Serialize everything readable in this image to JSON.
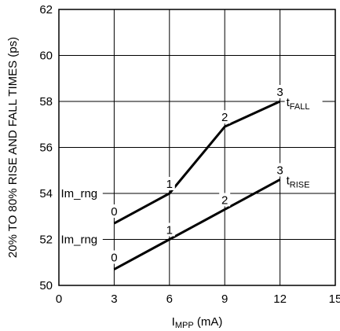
{
  "chart_data": {
    "type": "line",
    "xlabel": {
      "main": "I",
      "sub": "MPP",
      "unit": " (mA)"
    },
    "ylabel": "20% TO 80% RISE AND FALL TIMES (ps)",
    "xlim": [
      0,
      15
    ],
    "ylim": [
      50,
      62
    ],
    "xticks": [
      0,
      3,
      6,
      9,
      12,
      15
    ],
    "yticks": [
      50,
      52,
      54,
      56,
      58,
      60,
      62
    ],
    "grid": true,
    "series": [
      {
        "name": {
          "main": "t",
          "sub": "FALL"
        },
        "x": [
          3,
          6,
          9,
          12
        ],
        "y": [
          52.7,
          54.0,
          56.9,
          58.0
        ],
        "point_labels": [
          "0",
          "1",
          "2",
          "3"
        ]
      },
      {
        "name": {
          "main": "t",
          "sub": "RISE"
        },
        "x": [
          3,
          6,
          9,
          12
        ],
        "y": [
          50.7,
          52.0,
          53.3,
          54.6
        ],
        "point_labels": [
          "0",
          "1",
          "2",
          "3"
        ]
      }
    ],
    "annotations": [
      "Im_rng",
      "Im_rng"
    ]
  }
}
